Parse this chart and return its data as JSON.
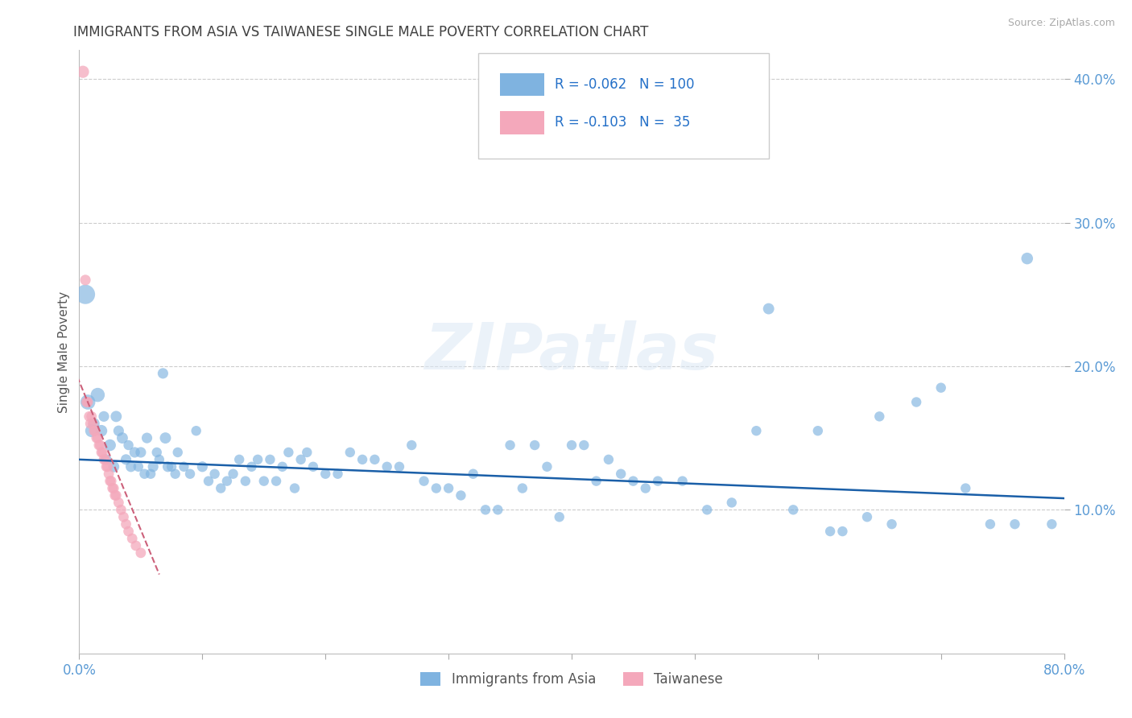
{
  "title": "IMMIGRANTS FROM ASIA VS TAIWANESE SINGLE MALE POVERTY CORRELATION CHART",
  "source": "Source: ZipAtlas.com",
  "xlabel_label": "Immigrants from Asia",
  "ylabel_label": "Single Male Poverty",
  "xlabel2_label": "Taiwanese",
  "watermark": "ZIPatlas",
  "legend_r1": "R = -0.062",
  "legend_n1": "N = 100",
  "legend_r2": "R = -0.103",
  "legend_n2": "N =  35",
  "blue_color": "#7fb3e0",
  "pink_color": "#f4a8bb",
  "line_blue": "#1a5fa8",
  "line_pink": "#cc607a",
  "text_color_blue": "#2470c8",
  "axis_label_color": "#5b9bd5",
  "title_color": "#404040",
  "xlim": [
    0.0,
    0.8
  ],
  "ylim": [
    0.0,
    0.42
  ],
  "yticks": [
    0.1,
    0.2,
    0.3,
    0.4
  ],
  "ytick_labels": [
    "10.0%",
    "20.0%",
    "30.0%",
    "40.0%"
  ],
  "xticks": [
    0.0,
    0.1,
    0.2,
    0.3,
    0.4,
    0.5,
    0.6,
    0.7,
    0.8
  ],
  "xtick_labels": [
    "0.0%",
    "",
    "",
    "",
    "",
    "",
    "",
    "",
    "80.0%"
  ],
  "blue_x": [
    0.005,
    0.007,
    0.01,
    0.012,
    0.015,
    0.018,
    0.02,
    0.022,
    0.025,
    0.028,
    0.03,
    0.032,
    0.035,
    0.038,
    0.04,
    0.042,
    0.045,
    0.048,
    0.05,
    0.053,
    0.055,
    0.058,
    0.06,
    0.063,
    0.065,
    0.068,
    0.07,
    0.072,
    0.075,
    0.078,
    0.08,
    0.085,
    0.09,
    0.095,
    0.1,
    0.105,
    0.11,
    0.115,
    0.12,
    0.125,
    0.13,
    0.135,
    0.14,
    0.145,
    0.15,
    0.155,
    0.16,
    0.165,
    0.17,
    0.175,
    0.18,
    0.185,
    0.19,
    0.2,
    0.21,
    0.22,
    0.23,
    0.24,
    0.25,
    0.26,
    0.27,
    0.28,
    0.29,
    0.3,
    0.31,
    0.32,
    0.33,
    0.34,
    0.35,
    0.36,
    0.37,
    0.38,
    0.39,
    0.4,
    0.41,
    0.42,
    0.43,
    0.44,
    0.45,
    0.46,
    0.47,
    0.49,
    0.51,
    0.53,
    0.55,
    0.56,
    0.58,
    0.6,
    0.61,
    0.62,
    0.64,
    0.65,
    0.66,
    0.68,
    0.7,
    0.72,
    0.74,
    0.76,
    0.77,
    0.79
  ],
  "blue_y": [
    0.25,
    0.175,
    0.155,
    0.16,
    0.18,
    0.155,
    0.165,
    0.135,
    0.145,
    0.13,
    0.165,
    0.155,
    0.15,
    0.135,
    0.145,
    0.13,
    0.14,
    0.13,
    0.14,
    0.125,
    0.15,
    0.125,
    0.13,
    0.14,
    0.135,
    0.195,
    0.15,
    0.13,
    0.13,
    0.125,
    0.14,
    0.13,
    0.125,
    0.155,
    0.13,
    0.12,
    0.125,
    0.115,
    0.12,
    0.125,
    0.135,
    0.12,
    0.13,
    0.135,
    0.12,
    0.135,
    0.12,
    0.13,
    0.14,
    0.115,
    0.135,
    0.14,
    0.13,
    0.125,
    0.125,
    0.14,
    0.135,
    0.135,
    0.13,
    0.13,
    0.145,
    0.12,
    0.115,
    0.115,
    0.11,
    0.125,
    0.1,
    0.1,
    0.145,
    0.115,
    0.145,
    0.13,
    0.095,
    0.145,
    0.145,
    0.12,
    0.135,
    0.125,
    0.12,
    0.115,
    0.12,
    0.12,
    0.1,
    0.105,
    0.155,
    0.24,
    0.1,
    0.155,
    0.085,
    0.085,
    0.095,
    0.165,
    0.09,
    0.175,
    0.185,
    0.115,
    0.09,
    0.09,
    0.275,
    0.09
  ],
  "blue_size": [
    300,
    180,
    130,
    100,
    160,
    110,
    90,
    90,
    110,
    100,
    100,
    90,
    100,
    90,
    80,
    90,
    90,
    80,
    90,
    80,
    90,
    80,
    90,
    80,
    80,
    90,
    100,
    90,
    80,
    80,
    80,
    80,
    80,
    80,
    90,
    80,
    80,
    80,
    80,
    80,
    80,
    80,
    80,
    80,
    80,
    80,
    80,
    80,
    80,
    80,
    80,
    80,
    80,
    80,
    80,
    80,
    80,
    80,
    80,
    80,
    80,
    80,
    80,
    80,
    80,
    80,
    80,
    80,
    80,
    80,
    80,
    80,
    80,
    80,
    80,
    80,
    80,
    80,
    80,
    80,
    80,
    80,
    80,
    80,
    80,
    100,
    80,
    80,
    80,
    80,
    80,
    80,
    80,
    80,
    80,
    80,
    80,
    80,
    110,
    80
  ],
  "pink_x": [
    0.003,
    0.005,
    0.006,
    0.007,
    0.008,
    0.009,
    0.01,
    0.011,
    0.012,
    0.013,
    0.014,
    0.015,
    0.016,
    0.017,
    0.018,
    0.019,
    0.02,
    0.021,
    0.022,
    0.023,
    0.024,
    0.025,
    0.026,
    0.027,
    0.028,
    0.029,
    0.03,
    0.032,
    0.034,
    0.036,
    0.038,
    0.04,
    0.043,
    0.046,
    0.05
  ],
  "pink_y": [
    0.405,
    0.26,
    0.175,
    0.175,
    0.165,
    0.16,
    0.165,
    0.16,
    0.155,
    0.155,
    0.15,
    0.15,
    0.145,
    0.145,
    0.14,
    0.14,
    0.135,
    0.135,
    0.13,
    0.13,
    0.125,
    0.12,
    0.12,
    0.115,
    0.115,
    0.11,
    0.11,
    0.105,
    0.1,
    0.095,
    0.09,
    0.085,
    0.08,
    0.075,
    0.07
  ],
  "pink_size": [
    120,
    90,
    90,
    85,
    85,
    85,
    85,
    85,
    85,
    85,
    85,
    85,
    85,
    85,
    85,
    85,
    85,
    85,
    85,
    85,
    85,
    85,
    85,
    85,
    85,
    85,
    85,
    85,
    85,
    85,
    85,
    85,
    85,
    85,
    85
  ],
  "blue_line_x0": 0.0,
  "blue_line_x1": 0.8,
  "blue_line_y0": 0.135,
  "blue_line_y1": 0.108,
  "pink_line_x0": -0.01,
  "pink_line_x1": 0.065,
  "pink_line_y0": 0.21,
  "pink_line_y1": 0.055
}
